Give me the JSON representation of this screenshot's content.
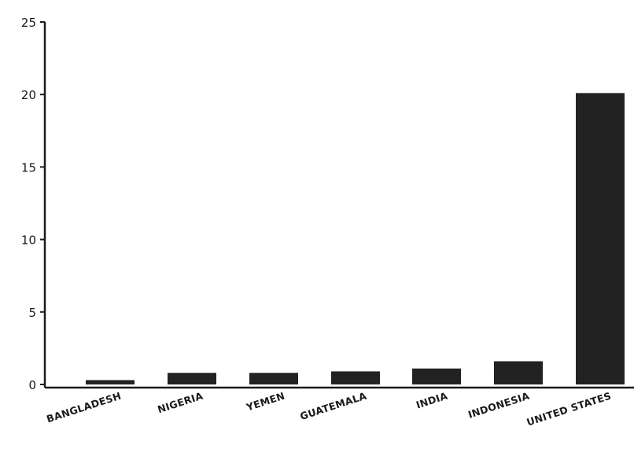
{
  "chart_data": {
    "type": "bar",
    "title": "",
    "xlabel": "",
    "ylabel": "",
    "categories": [
      "BANGLADESH",
      "NIGERIA",
      "YEMEN",
      "GUATEMALA",
      "INDIA",
      "INDONESIA",
      "UNITED STATES"
    ],
    "values": [
      0.3,
      0.8,
      0.8,
      0.9,
      1.1,
      1.6,
      20.1
    ],
    "ylim": [
      0,
      25
    ],
    "yticks": [
      0,
      5,
      10,
      15,
      20,
      25
    ],
    "grid": false,
    "legend": "none",
    "bar_color": "#222222"
  }
}
